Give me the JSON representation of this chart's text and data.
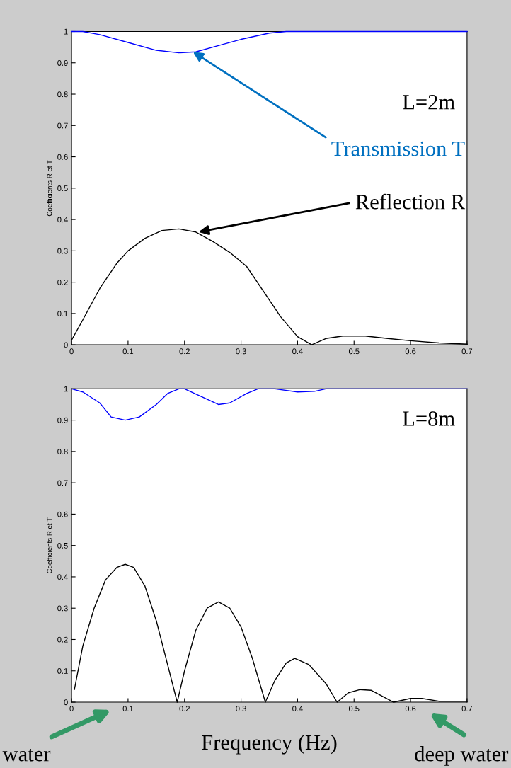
{
  "chart_data": [
    {
      "type": "line",
      "ylabel": "Coefficients R et T",
      "xlim": [
        0,
        0.7
      ],
      "ylim": [
        0,
        1
      ],
      "xticks": [
        0,
        0.1,
        0.2,
        0.3,
        0.4,
        0.5,
        0.6,
        0.7
      ],
      "yticks": [
        0,
        0.1,
        0.2,
        0.3,
        0.4,
        0.5,
        0.6,
        0.7,
        0.8,
        0.9,
        1
      ],
      "series": [
        {
          "color": "#0000ff",
          "x": [
            0,
            0.02,
            0.05,
            0.1,
            0.15,
            0.19,
            0.22,
            0.26,
            0.3,
            0.35,
            0.38,
            0.7
          ],
          "values": [
            1,
            1,
            0.99,
            0.965,
            0.94,
            0.932,
            0.935,
            0.955,
            0.975,
            0.995,
            1,
            1
          ]
        },
        {
          "color": "#000000",
          "x": [
            0,
            0.02,
            0.05,
            0.08,
            0.1,
            0.13,
            0.16,
            0.19,
            0.22,
            0.25,
            0.28,
            0.31,
            0.34,
            0.37,
            0.4,
            0.425,
            0.45,
            0.48,
            0.52,
            0.56,
            0.6,
            0.65,
            0.7
          ],
          "values": [
            0.015,
            0.08,
            0.18,
            0.26,
            0.3,
            0.34,
            0.365,
            0.37,
            0.36,
            0.33,
            0.295,
            0.25,
            0.17,
            0.09,
            0.026,
            0,
            0.02,
            0.028,
            0.028,
            0.02,
            0.013,
            0.006,
            0.002
          ]
        }
      ],
      "annotations": [
        "L=2m",
        {
          "text": "Transmission T",
          "x": 0.215,
          "y": 0.935
        },
        {
          "text": "Reflection R",
          "x": 0.225,
          "y": 0.36
        }
      ]
    },
    {
      "type": "line",
      "xlabel": "Frequency (Hz)",
      "ylabel": "Coefficients R et T",
      "xlim": [
        0,
        0.7
      ],
      "ylim": [
        0,
        1
      ],
      "xticks": [
        0,
        0.1,
        0.2,
        0.3,
        0.4,
        0.5,
        0.6,
        0.7
      ],
      "yticks": [
        0,
        0.1,
        0.2,
        0.3,
        0.4,
        0.5,
        0.6,
        0.7,
        0.8,
        0.9,
        1
      ],
      "series": [
        {
          "color": "#0000ff",
          "x": [
            0,
            0.02,
            0.05,
            0.07,
            0.095,
            0.12,
            0.15,
            0.17,
            0.19,
            0.2,
            0.23,
            0.26,
            0.28,
            0.31,
            0.33,
            0.36,
            0.4,
            0.43,
            0.45,
            0.7
          ],
          "values": [
            1,
            0.99,
            0.955,
            0.91,
            0.9,
            0.91,
            0.95,
            0.985,
            1,
            1,
            0.975,
            0.95,
            0.955,
            0.985,
            1,
            1,
            0.99,
            0.992,
            1,
            1
          ]
        },
        {
          "color": "#000000",
          "x": [
            0.005,
            0.02,
            0.04,
            0.06,
            0.08,
            0.095,
            0.11,
            0.13,
            0.15,
            0.17,
            0.187,
            0.2,
            0.22,
            0.24,
            0.26,
            0.28,
            0.3,
            0.32,
            0.343,
            0.36,
            0.38,
            0.395,
            0.42,
            0.45,
            0.47,
            0.49,
            0.51,
            0.53,
            0.57,
            0.6,
            0.62,
            0.65,
            0.7
          ],
          "values": [
            0.04,
            0.18,
            0.3,
            0.39,
            0.43,
            0.44,
            0.43,
            0.37,
            0.26,
            0.12,
            0,
            0.1,
            0.23,
            0.3,
            0.32,
            0.3,
            0.24,
            0.14,
            0,
            0.07,
            0.125,
            0.14,
            0.12,
            0.06,
            0,
            0.03,
            0.04,
            0.038,
            0,
            0.012,
            0.012,
            0.003,
            0.003
          ]
        }
      ],
      "annotations": [
        "L=8m",
        "water",
        "deep water"
      ]
    }
  ]
}
